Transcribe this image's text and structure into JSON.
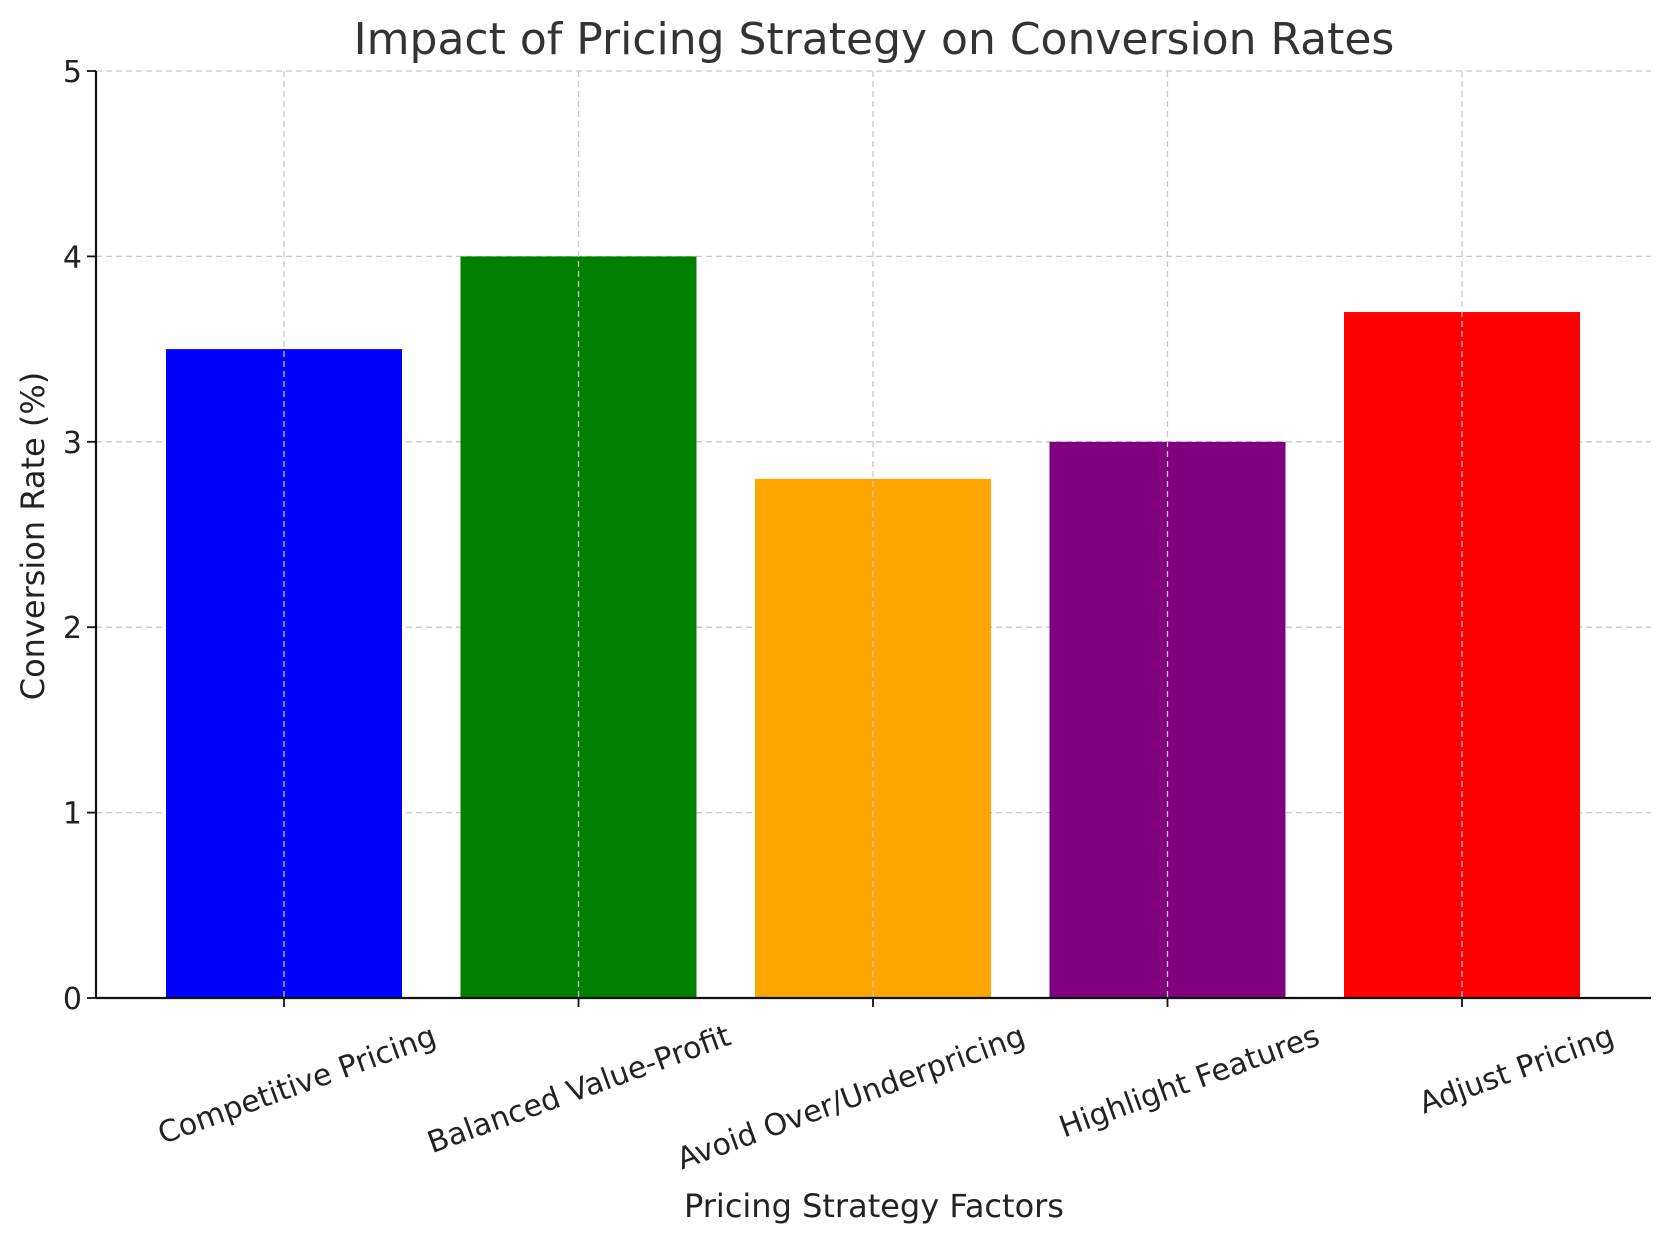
{
  "chart_data": {
    "type": "bar",
    "title": "Impact of Pricing Strategy on Conversion Rates",
    "xlabel": "Pricing Strategy Factors",
    "ylabel": "Conversion Rate (%)",
    "categories": [
      "Competitive Pricing",
      "Balanced Value-Profit",
      "Avoid Over/Underpricing",
      "Highlight Features",
      "Adjust Pricing"
    ],
    "values": [
      3.5,
      4.0,
      2.8,
      3.0,
      3.7
    ],
    "colors": [
      "#0000ff",
      "#008000",
      "#ffa500",
      "#800080",
      "#ff0000"
    ],
    "ylim": [
      0,
      5
    ],
    "yticks": [
      0,
      1,
      2,
      3,
      4,
      5
    ],
    "grid": true,
    "legend": "none"
  }
}
